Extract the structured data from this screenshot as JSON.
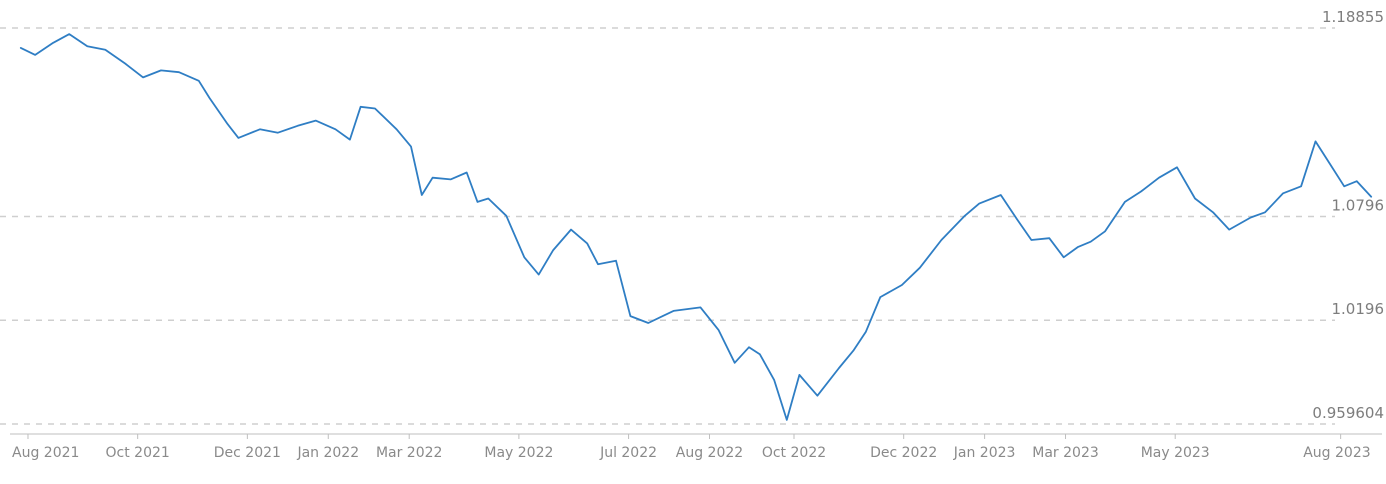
{
  "chart_data": {
    "type": "line",
    "title": "",
    "xlabel": "",
    "ylabel": "",
    "ylim": [
      0.955,
      1.192
    ],
    "grid": true,
    "y_ticks": [
      "1.18855",
      "1.0796",
      "1.0196",
      "0.959604"
    ],
    "y_tick_values": [
      1.18855,
      1.0796,
      1.0196,
      0.959604
    ],
    "x_ticks": [
      "Aug 2021",
      "Oct 2021",
      "Dec 2021",
      "Jan 2022",
      "Mar 2022",
      "May 2022",
      "Jul 2022",
      "Aug 2022",
      "Oct 2022",
      "Dec 2022",
      "Jan 2023",
      "Mar 2023",
      "May 2023",
      "Aug 2023"
    ],
    "x_tick_dates": [
      "2021-08-01",
      "2021-10-01",
      "2021-12-01",
      "2022-01-15",
      "2022-03-01",
      "2022-05-01",
      "2022-07-01",
      "2022-08-15",
      "2022-10-01",
      "2022-12-01",
      "2023-01-15",
      "2023-03-01",
      "2023-05-01",
      "2023-08-01"
    ],
    "series": [
      {
        "color": "#2f7ec4",
        "x": [
          "2021-07-28",
          "2021-08-05",
          "2021-08-15",
          "2021-08-24",
          "2021-09-03",
          "2021-09-13",
          "2021-09-24",
          "2021-10-04",
          "2021-10-14",
          "2021-10-24",
          "2021-11-04",
          "2021-11-10",
          "2021-11-20",
          "2021-11-26",
          "2021-12-08",
          "2021-12-18",
          "2021-12-29",
          "2022-01-08",
          "2022-01-19",
          "2022-01-27",
          "2022-02-02",
          "2022-02-10",
          "2022-02-22",
          "2022-03-02",
          "2022-03-08",
          "2022-03-14",
          "2022-03-24",
          "2022-04-02",
          "2022-04-08",
          "2022-04-14",
          "2022-04-24",
          "2022-05-04",
          "2022-05-12",
          "2022-05-20",
          "2022-05-30",
          "2022-06-08",
          "2022-06-14",
          "2022-06-24",
          "2022-07-02",
          "2022-07-12",
          "2022-07-20",
          "2022-07-26",
          "2022-08-10",
          "2022-08-20",
          "2022-08-29",
          "2022-09-06",
          "2022-09-12",
          "2022-09-20",
          "2022-09-27",
          "2022-10-04",
          "2022-10-14",
          "2022-10-26",
          "2022-11-03",
          "2022-11-10",
          "2022-11-18",
          "2022-11-30",
          "2022-12-10",
          "2022-12-22",
          "2023-01-04",
          "2023-01-12",
          "2023-01-24",
          "2023-02-02",
          "2023-02-10",
          "2023-02-20",
          "2023-02-28",
          "2023-03-08",
          "2023-03-15",
          "2023-03-23",
          "2023-04-03",
          "2023-04-12",
          "2023-04-22",
          "2023-05-02",
          "2023-05-12",
          "2023-05-22",
          "2023-05-31",
          "2023-06-12",
          "2023-06-20",
          "2023-06-30",
          "2023-07-10",
          "2023-07-18",
          "2023-07-26",
          "2023-08-03",
          "2023-08-10",
          "2023-08-18"
        ],
        "y": [
          1.177,
          1.173,
          1.18,
          1.185,
          1.178,
          1.176,
          1.168,
          1.16,
          1.164,
          1.163,
          1.158,
          1.148,
          1.133,
          1.125,
          1.13,
          1.128,
          1.132,
          1.135,
          1.13,
          1.124,
          1.143,
          1.142,
          1.13,
          1.12,
          1.092,
          1.102,
          1.101,
          1.105,
          1.088,
          1.09,
          1.08,
          1.056,
          1.046,
          1.06,
          1.072,
          1.064,
          1.052,
          1.054,
          1.022,
          1.018,
          1.022,
          1.025,
          1.027,
          1.014,
          0.995,
          1.004,
          1.0,
          0.985,
          0.962,
          0.988,
          0.976,
          0.992,
          1.002,
          1.013,
          1.033,
          1.04,
          1.05,
          1.066,
          1.08,
          1.087,
          1.092,
          1.078,
          1.066,
          1.067,
          1.056,
          1.062,
          1.065,
          1.071,
          1.088,
          1.094,
          1.102,
          1.108,
          1.09,
          1.082,
          1.072,
          1.079,
          1.082,
          1.093,
          1.097,
          1.123,
          1.11,
          1.097,
          1.1,
          1.091
        ]
      }
    ]
  }
}
